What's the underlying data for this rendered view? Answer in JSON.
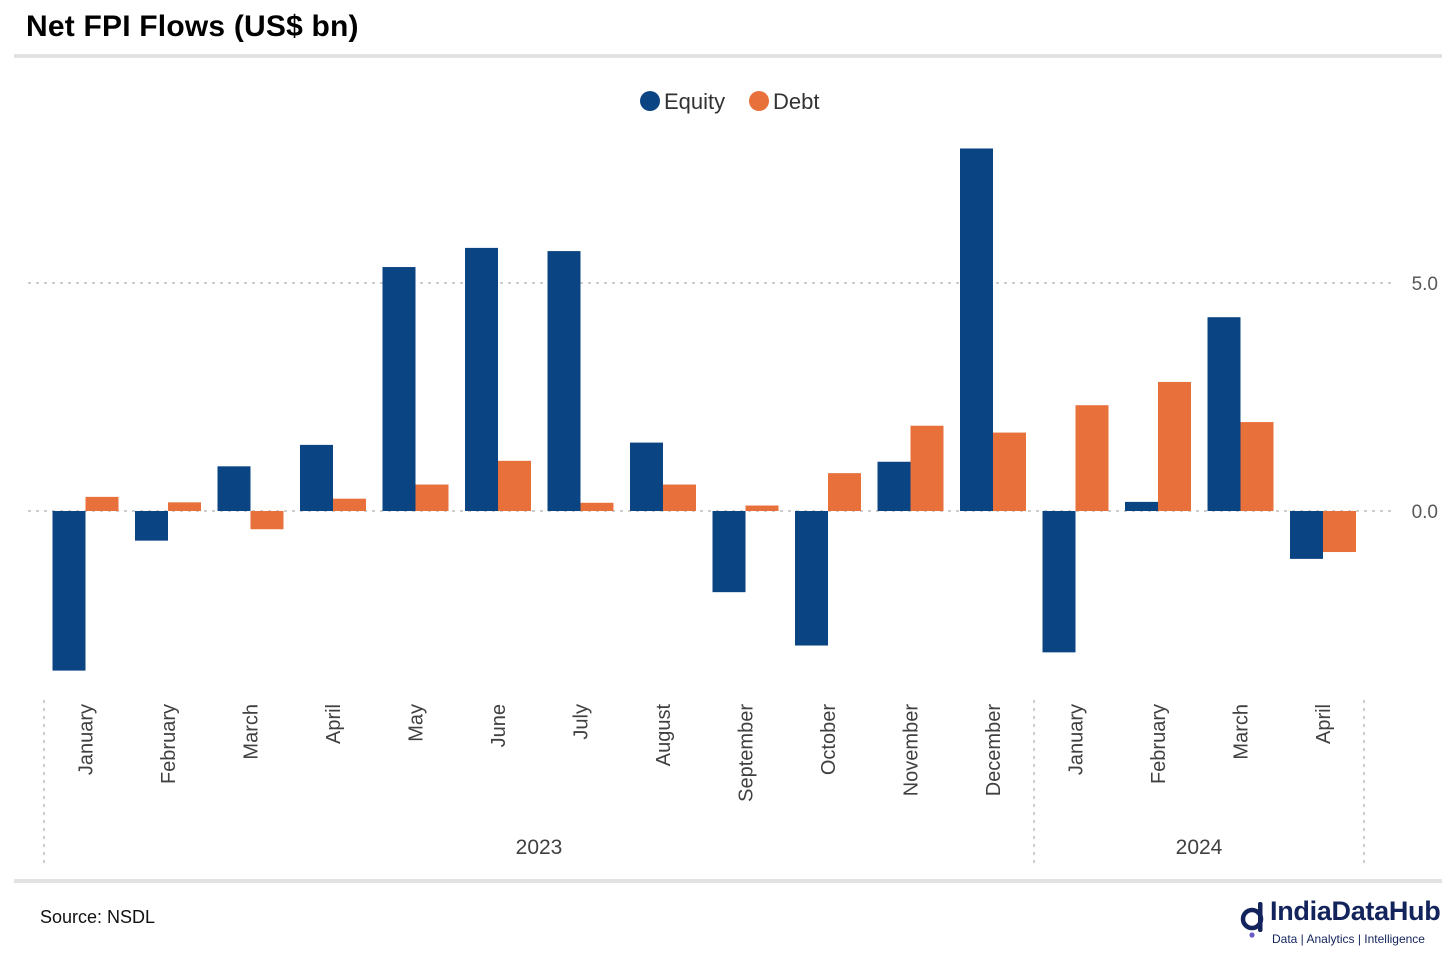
{
  "page": {
    "title": "Net FPI Flows (US$ bn)",
    "source": "Source: NSDL"
  },
  "brand": {
    "name": "IndiaDataHub",
    "tagline": "Data | Analytics | Intelligence",
    "color": "#13235c"
  },
  "chart_data": {
    "type": "bar",
    "title": "Net FPI Flows (US$ bn)",
    "categories": [
      "January",
      "February",
      "March",
      "April",
      "May",
      "June",
      "July",
      "August",
      "September",
      "October",
      "November",
      "December",
      "January",
      "February",
      "March",
      "April"
    ],
    "groups": [
      {
        "label": "2023",
        "count": 12
      },
      {
        "label": "2024",
        "count": 4
      }
    ],
    "series": [
      {
        "name": "Equity",
        "color": "#0b4483",
        "values": [
          -3.5,
          -0.65,
          0.98,
          1.45,
          5.35,
          5.77,
          5.7,
          1.5,
          -1.78,
          -2.95,
          1.08,
          7.95,
          -3.1,
          0.2,
          4.25,
          -1.05
        ]
      },
      {
        "name": "Debt",
        "color": "#e8703a",
        "values": [
          0.31,
          0.19,
          -0.4,
          0.27,
          0.58,
          1.1,
          0.18,
          0.58,
          0.12,
          0.83,
          1.87,
          1.72,
          2.32,
          2.83,
          1.95,
          -0.9
        ]
      }
    ],
    "yticks": [
      0.0,
      5.0
    ],
    "ytick_labels": [
      "0.0",
      "5.0"
    ],
    "ylim": [
      -3.9,
      8.4
    ],
    "y_axis_position": "right",
    "grid": true,
    "legend": "top-center",
    "xlabel": "",
    "ylabel": ""
  }
}
